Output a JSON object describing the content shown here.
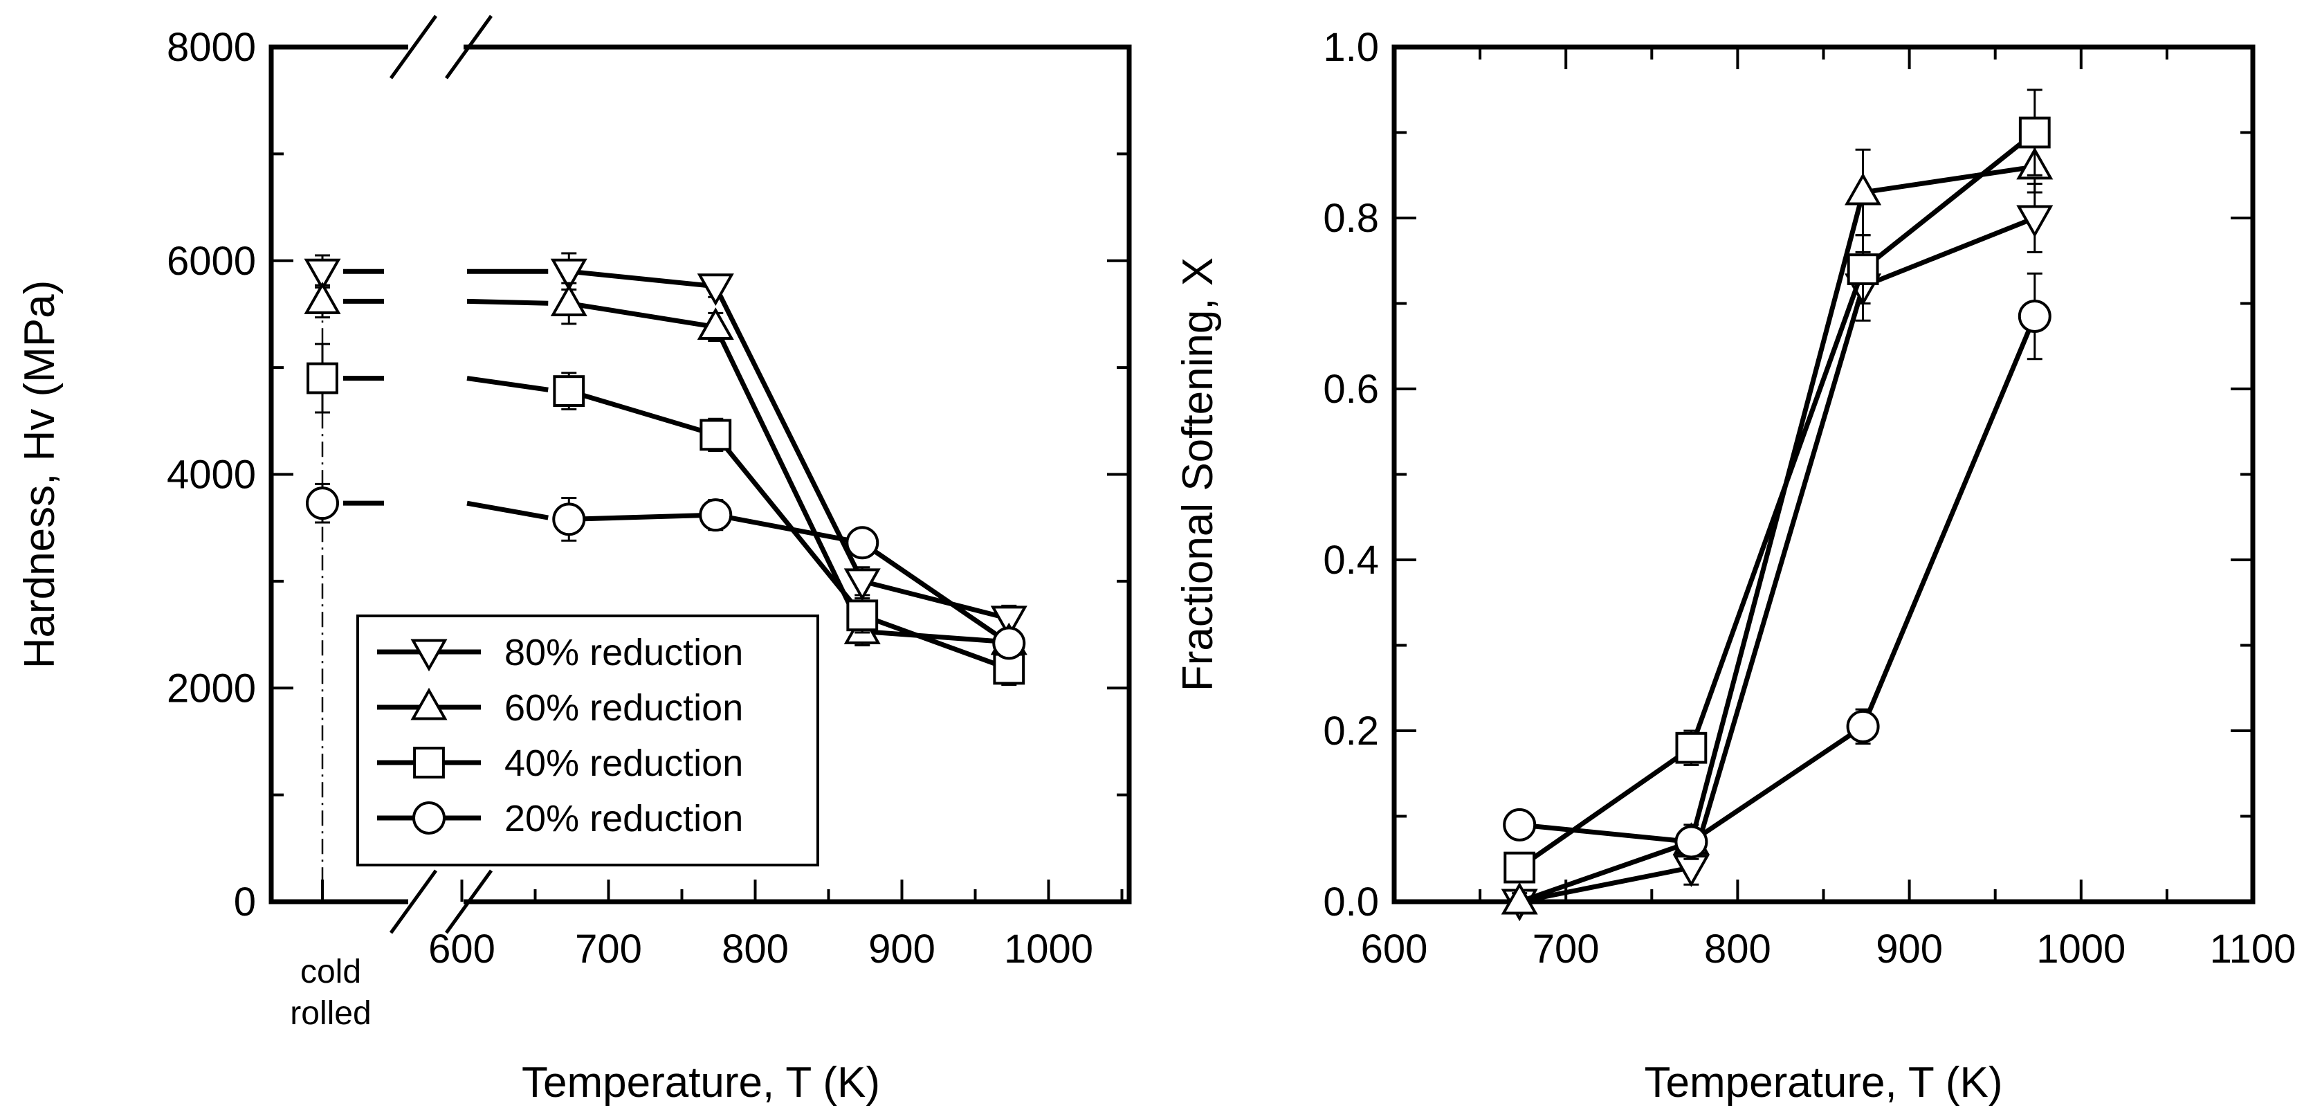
{
  "chart_data": [
    {
      "type": "line",
      "title": "",
      "xlabel": "Temperature, T (K)",
      "ylabel": "Hardness, Hv (MPa)",
      "ylim": [
        0,
        8000
      ],
      "xlim": [
        550,
        1050
      ],
      "x_ticks": [
        "600",
        "700",
        "800",
        "900",
        "1000"
      ],
      "y_ticks": [
        "0",
        "2000",
        "4000",
        "6000",
        "8000"
      ],
      "cold_rolled_label": [
        "cold",
        "rolled"
      ],
      "axis_break": true,
      "legend": {
        "placement": "bottom-left",
        "entries": [
          "80% reduction",
          "60% reduction",
          "40% reduction",
          "20% reduction"
        ]
      },
      "series": [
        {
          "name": "80% reduction",
          "marker": "triangle-down",
          "cold_rolled": 5900,
          "cold_rolled_err": 150,
          "x": [
            673,
            773,
            873,
            973
          ],
          "values": [
            5900,
            5760,
            3000,
            2650
          ],
          "errors": [
            170,
            100,
            130,
            120
          ]
        },
        {
          "name": "60% reduction",
          "marker": "triangle-up",
          "cold_rolled": 5620,
          "cold_rolled_err": 150,
          "x": [
            673,
            773,
            873,
            973
          ],
          "values": [
            5600,
            5380,
            2530,
            2430
          ],
          "errors": [
            190,
            130,
            130,
            120
          ]
        },
        {
          "name": "40% reduction",
          "marker": "square",
          "cold_rolled": 4900,
          "cold_rolled_err": 320,
          "x": [
            673,
            773,
            873,
            973
          ],
          "values": [
            4780,
            4370,
            2680,
            2180
          ],
          "errors": [
            170,
            150,
            160,
            150
          ]
        },
        {
          "name": "20% reduction",
          "marker": "circle",
          "cold_rolled": 3730,
          "cold_rolled_err": 180,
          "x": [
            673,
            773,
            873,
            973
          ],
          "values": [
            3580,
            3620,
            3360,
            2420
          ],
          "errors": [
            200,
            140,
            100,
            120
          ]
        }
      ]
    },
    {
      "type": "line",
      "title": "",
      "xlabel": "Temperature, T (K)",
      "ylabel": "Fractional Softening, X",
      "xlim": [
        600,
        1100
      ],
      "ylim": [
        0,
        1
      ],
      "x_ticks": [
        "600",
        "700",
        "800",
        "900",
        "1000",
        "1100"
      ],
      "y_ticks": [
        "0.0",
        "0.2",
        "0.4",
        "0.6",
        "0.8",
        "1.0"
      ],
      "series": [
        {
          "name": "80% reduction",
          "marker": "triangle-down",
          "x": [
            673,
            773,
            873,
            973
          ],
          "values": [
            0.0,
            0.04,
            0.72,
            0.8
          ],
          "errors": [
            0.01,
            0.02,
            0.04,
            0.04
          ]
        },
        {
          "name": "60% reduction",
          "marker": "triangle-up",
          "x": [
            673,
            773,
            873,
            973
          ],
          "values": [
            0.0,
            0.07,
            0.83,
            0.86
          ],
          "errors": [
            0.01,
            0.02,
            0.05,
            0.03
          ]
        },
        {
          "name": "40% reduction",
          "marker": "square",
          "x": [
            673,
            773,
            873,
            973
          ],
          "values": [
            0.04,
            0.18,
            0.74,
            0.9
          ],
          "errors": [
            0.01,
            0.02,
            0.04,
            0.05
          ]
        },
        {
          "name": "20% reduction",
          "marker": "circle",
          "x": [
            673,
            773,
            873,
            973
          ],
          "values": [
            0.09,
            0.07,
            0.205,
            0.685
          ],
          "errors": [
            0.01,
            0.01,
            0.02,
            0.05
          ]
        }
      ]
    }
  ]
}
